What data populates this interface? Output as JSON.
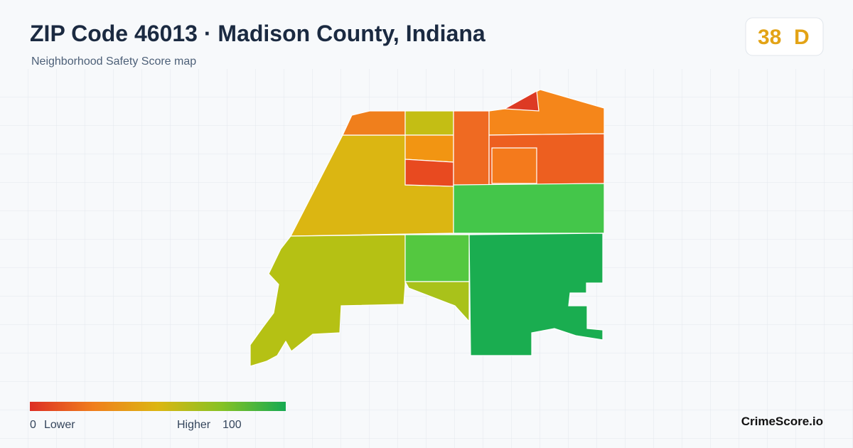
{
  "header": {
    "title": "ZIP Code 46013 · Madison County, Indiana",
    "subtitle": "Neighborhood Safety Score map"
  },
  "score": {
    "value": 38,
    "grade": "D"
  },
  "legend": {
    "min": 0,
    "min_label": "Lower",
    "max_label": "Higher",
    "max": 100
  },
  "brand": "CrimeScore.io"
}
